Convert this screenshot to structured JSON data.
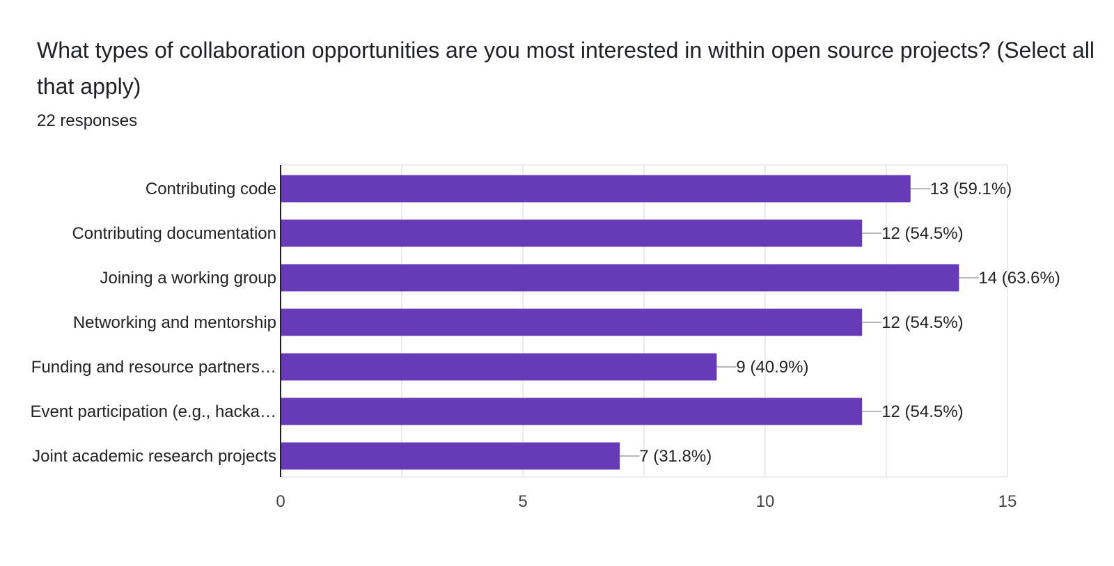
{
  "question": {
    "title": "What types of collaboration opportunities are you most interested in within open source projects? (Select all that apply)",
    "responses": "22 responses"
  },
  "colors": {
    "bar": "#673ab7",
    "grid": "#e6e6e6",
    "axis": "#222222",
    "leader": "#9e9e9e"
  },
  "chart_data": {
    "type": "bar",
    "orientation": "horizontal",
    "title": "",
    "xlabel": "",
    "ylabel": "",
    "categories": [
      "Contributing code",
      "Contributing documentation",
      "Joining a working group",
      "Networking and mentorship",
      "Funding and resource partners…",
      "Event participation (e.g., hacka…",
      "Joint academic research projects"
    ],
    "values": [
      13,
      12,
      14,
      12,
      9,
      12,
      7
    ],
    "data_labels": [
      "13 (59.1%)",
      "12 (54.5%)",
      "14 (63.6%)",
      "12 (54.5%)",
      "9 (40.9%)",
      "12 (54.5%)",
      "7 (31.8%)"
    ],
    "xlim": [
      0,
      15
    ],
    "xticks": [
      0,
      5,
      10,
      15
    ],
    "grid": true,
    "legend": "none"
  }
}
